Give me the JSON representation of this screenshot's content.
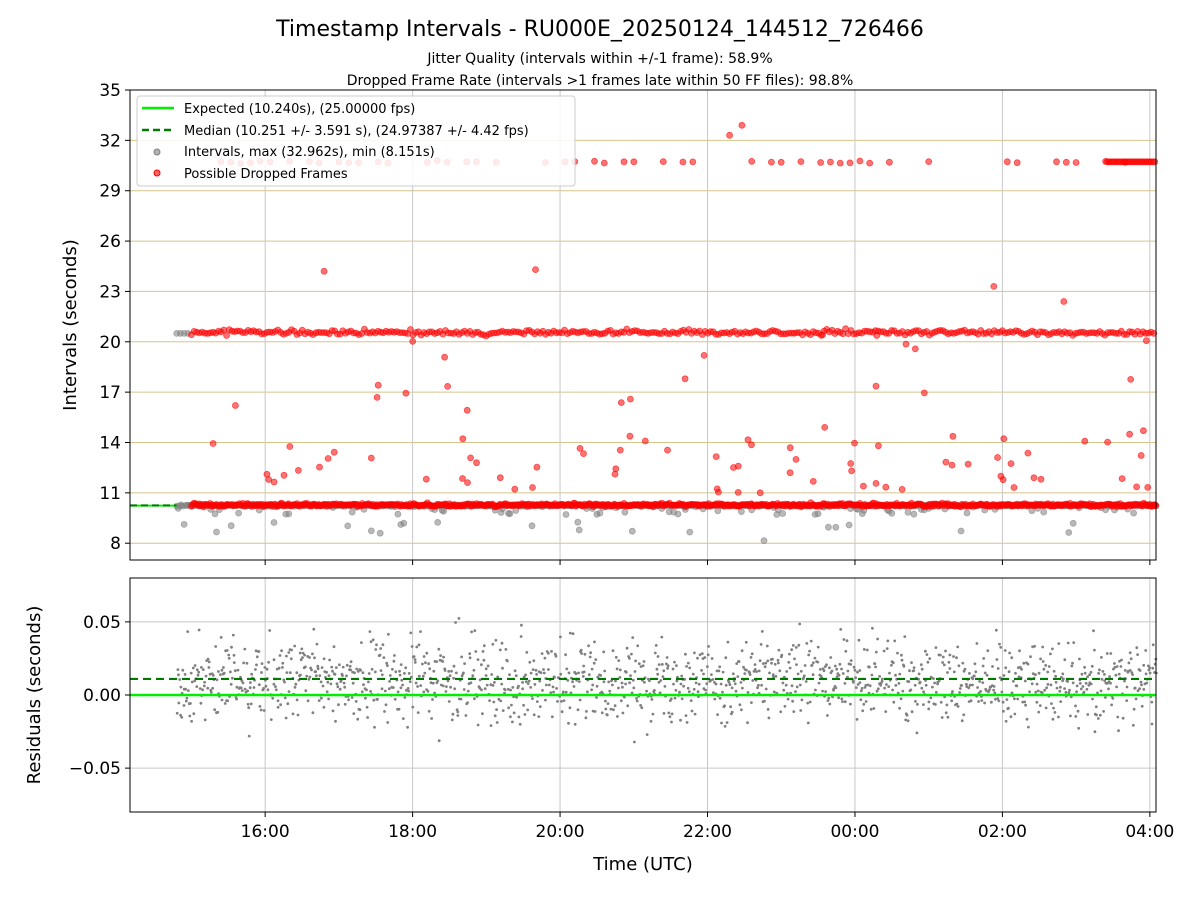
{
  "chart_data": [
    {
      "panel": "top",
      "type": "scatter",
      "title": "Timestamp Intervals - RU000E_20250124_144512_726466",
      "subtitle_lines": [
        "Jitter Quality (intervals within +/-1 frame): 58.9%",
        "Dropped Frame Rate (intervals >1 frames late within 50 FF files): 98.8%"
      ],
      "ylabel": "Intervals (seconds)",
      "xlim": [
        "14:10",
        "04:05"
      ],
      "ylim": [
        7,
        35
      ],
      "yticks": [
        8,
        11,
        14,
        17,
        20,
        23,
        26,
        29,
        32,
        35
      ],
      "grid": "on",
      "legend_placement": "upper-left",
      "legend": [
        {
          "label": "Expected (10.240s), (25.00000 fps)",
          "style": "solid-line",
          "color": "#00ee00"
        },
        {
          "label": "Median (10.251 +/- 3.591 s), (24.97387 +/- 4.42 fps)",
          "style": "dashed-line",
          "color": "#007a00"
        },
        {
          "label": "Intervals, max (32.962s), min (8.151s)",
          "style": "marker",
          "color": "#808080"
        },
        {
          "label": "Possible Dropped Frames",
          "style": "marker",
          "color": "#ff0000"
        }
      ],
      "expected_interval": 10.24,
      "median_interval": 10.251,
      "bands": [
        {
          "name": "normal",
          "center": 10.24,
          "spread": 0.12
        },
        {
          "name": "one dropped",
          "center": 20.5,
          "spread": 0.18
        },
        {
          "name": "two dropped",
          "center": 30.72,
          "spread": 0.1
        }
      ],
      "notable_points": [
        {
          "x": "16:48",
          "y": 24.2
        },
        {
          "x": "19:40",
          "y": 24.3
        },
        {
          "x": "22:18",
          "y": 32.3
        },
        {
          "x": "22:28",
          "y": 32.9
        },
        {
          "x": "01:53",
          "y": 23.3
        },
        {
          "x": "02:50",
          "y": 22.4
        },
        {
          "x": "22:46",
          "y": 8.151
        }
      ]
    },
    {
      "panel": "bottom",
      "type": "scatter",
      "ylabel": "Residuals (seconds)",
      "xlabel": "Time (UTC)",
      "xlim": [
        "14:10",
        "04:05"
      ],
      "ylim": [
        -0.08,
        0.08
      ],
      "yticks": [
        0.05,
        0.0,
        -0.05
      ],
      "ytick_labels": [
        "0.05",
        "0.00",
        "−0.05"
      ],
      "xticks": [
        "16:00",
        "18:00",
        "20:00",
        "22:00",
        "00:00",
        "02:00",
        "04:00"
      ],
      "grid": "on",
      "expected_residual": 0.0,
      "median_residual": 0.011
    }
  ],
  "colors": {
    "expected": "#00ee00",
    "median": "#007a00",
    "intervals": "#808080",
    "dropped": "#ff0000",
    "hgrid": "#d8c48a",
    "vgrid": "#c8c8c8"
  }
}
